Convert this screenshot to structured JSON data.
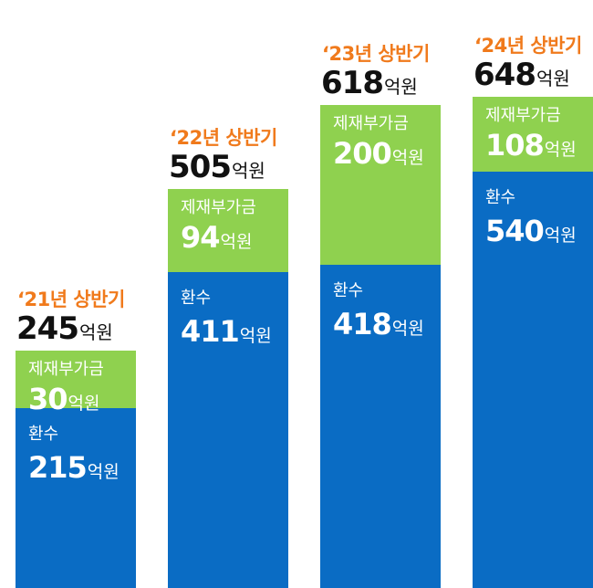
{
  "chart_data": {
    "type": "bar",
    "stacked": true,
    "unit": "억원",
    "categories": [
      "‘21년 상반기",
      "‘22년 상반기",
      "‘23년 상반기",
      "‘24년 상반기"
    ],
    "totals": [
      245,
      505,
      618,
      648
    ],
    "series": [
      {
        "name": "환수",
        "values": [
          215,
          411,
          418,
          540
        ],
        "color": "#0a6cc4"
      },
      {
        "name": "제재부가금",
        "values": [
          30,
          94,
          200,
          108
        ],
        "color": "#8fd14f"
      }
    ],
    "ylim": [
      0,
      700
    ],
    "grid": false
  }
}
